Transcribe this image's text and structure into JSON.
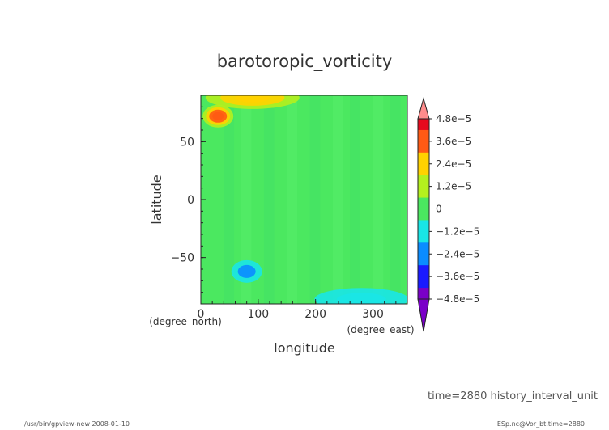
{
  "chart_data": {
    "type": "heatmap",
    "title": "barotoropic_vorticity",
    "xlabel": "longitude",
    "ylabel": "latitude",
    "x_unit": "(degree_east)",
    "y_unit": "(degree_north)",
    "xlim": [
      0,
      360
    ],
    "ylim": [
      -90,
      90
    ],
    "x_ticks": [
      0,
      100,
      200,
      300
    ],
    "y_ticks": [
      -50,
      0,
      50
    ],
    "colorbar": {
      "labels": [
        "4.8e−5",
        "3.6e−5",
        "2.4e−5",
        "1.2e−5",
        "0",
        "−1.2e−5",
        "−2.4e−5",
        "−3.6e−5",
        "−4.8e−5"
      ],
      "values": [
        4.8e-05,
        3.6e-05,
        2.4e-05,
        1.2e-05,
        0,
        -1.2e-05,
        -2.4e-05,
        -3.6e-05,
        -4.8e-05
      ]
    },
    "field": {
      "background_value": 0,
      "features": [
        {
          "lon": 30,
          "lat": 72,
          "value": 4.2e-05
        },
        {
          "lon": 90,
          "lat": 88,
          "value": 2.6e-05
        },
        {
          "lon": 80,
          "lat": -62,
          "value": -2.2e-05
        },
        {
          "lon": 280,
          "lat": -86,
          "value": -1.4e-05
        }
      ]
    }
  },
  "footer": {
    "time_label": "time=2880 history_interval_unit",
    "program": "/usr/bin/gpview-new  2008-01-10",
    "source": "ESp.nc@Vor_bt,time=2880"
  }
}
